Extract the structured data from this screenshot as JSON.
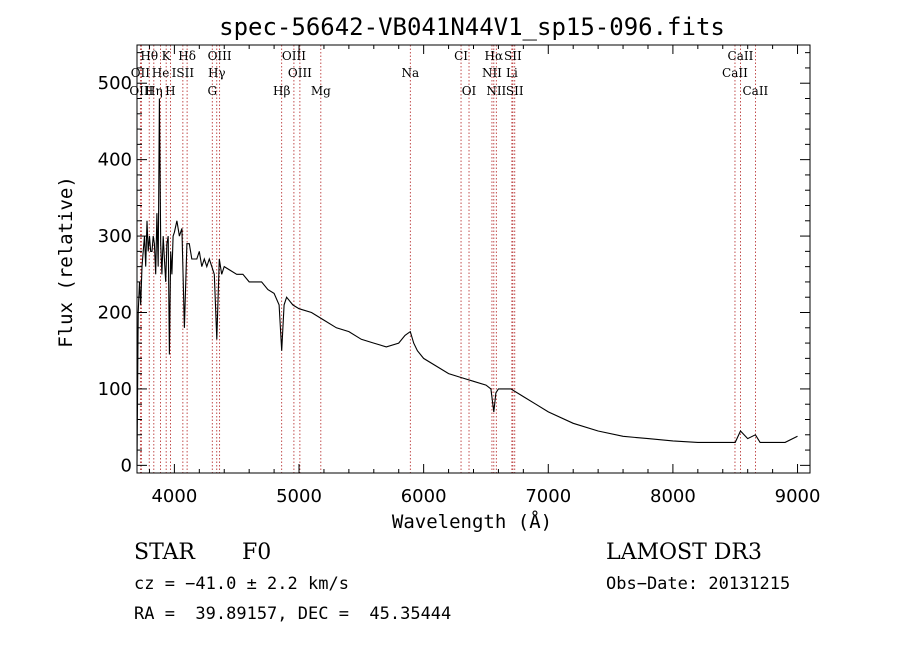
{
  "chart_data": {
    "type": "line",
    "title": "spec-56642-VB041N44V1_sp15-096.fits",
    "xlabel": "Wavelength (Å)",
    "ylabel": "Flux (relative)",
    "xlim": [
      3700,
      9100
    ],
    "ylim": [
      -10,
      550
    ],
    "x_ticks": [
      4000,
      5000,
      6000,
      7000,
      8000,
      9000
    ],
    "y_ticks": [
      0,
      100,
      200,
      300,
      400,
      500
    ],
    "series": [
      {
        "name": "flux",
        "x": [
          3700,
          3710,
          3720,
          3730,
          3740,
          3750,
          3760,
          3770,
          3780,
          3790,
          3800,
          3810,
          3820,
          3830,
          3840,
          3850,
          3860,
          3870,
          3880,
          3890,
          3900,
          3910,
          3920,
          3930,
          3940,
          3950,
          3960,
          3970,
          3980,
          3990,
          4000,
          4020,
          4040,
          4060,
          4080,
          4100,
          4120,
          4140,
          4160,
          4180,
          4200,
          4220,
          4240,
          4260,
          4280,
          4300,
          4320,
          4340,
          4360,
          4380,
          4400,
          4450,
          4500,
          4550,
          4600,
          4650,
          4700,
          4750,
          4800,
          4840,
          4861,
          4880,
          4900,
          4950,
          5000,
          5100,
          5200,
          5300,
          5400,
          5500,
          5600,
          5700,
          5800,
          5850,
          5893,
          5920,
          5950,
          6000,
          6100,
          6200,
          6300,
          6400,
          6500,
          6540,
          6563,
          6580,
          6600,
          6700,
          6800,
          6900,
          7000,
          7200,
          7400,
          7600,
          7800,
          8000,
          8200,
          8400,
          8500,
          8542,
          8600,
          8662,
          8700,
          8800,
          8900,
          9000
        ],
        "values": [
          0,
          200,
          240,
          210,
          260,
          280,
          300,
          260,
          320,
          280,
          300,
          280,
          280,
          300,
          290,
          250,
          330,
          260,
          480,
          290,
          250,
          300,
          270,
          240,
          290,
          300,
          145,
          280,
          250,
          300,
          305,
          320,
          300,
          310,
          180,
          290,
          290,
          270,
          270,
          270,
          280,
          260,
          270,
          260,
          270,
          260,
          250,
          165,
          270,
          250,
          260,
          255,
          250,
          250,
          240,
          240,
          240,
          230,
          225,
          210,
          150,
          210,
          220,
          210,
          205,
          200,
          190,
          180,
          175,
          165,
          160,
          155,
          160,
          170,
          175,
          160,
          150,
          140,
          130,
          120,
          115,
          110,
          105,
          100,
          70,
          95,
          100,
          100,
          90,
          80,
          70,
          55,
          45,
          38,
          35,
          32,
          30,
          30,
          30,
          45,
          35,
          40,
          30,
          30,
          30,
          38
        ]
      }
    ],
    "annotation_rows": {
      "top": [
        "Hθ",
        "K",
        "Hδ",
        "OIII",
        "OIII",
        "CI",
        "Hα",
        "SII",
        "CaII"
      ],
      "middle": [
        "OII",
        "He",
        "ISII",
        "Hγ",
        "OIII",
        "Na",
        "NII",
        "Li",
        "CaII"
      ],
      "bottom": [
        "OIII",
        "Hη",
        "H",
        "G",
        "Hβ",
        "Mg",
        "OI",
        "NII",
        "SII",
        "CaII"
      ]
    },
    "lines": [
      {
        "label": "Hθ",
        "wavelength": 3798,
        "row": 0
      },
      {
        "label": "K",
        "wavelength": 3934,
        "row": 0
      },
      {
        "label": "Hδ",
        "wavelength": 4102,
        "row": 0
      },
      {
        "label": "OIII",
        "wavelength": 4363,
        "row": 0
      },
      {
        "label": "OIII",
        "wavelength": 4959,
        "row": 0
      },
      {
        "label": "CI",
        "wavelength": 6300,
        "row": 0
      },
      {
        "label": "Hα",
        "wavelength": 6563,
        "row": 0
      },
      {
        "label": "SII",
        "wavelength": 6716,
        "row": 0
      },
      {
        "label": "CaII",
        "wavelength": 8542,
        "row": 0
      },
      {
        "label": "OII",
        "wavelength": 3727,
        "row": 1
      },
      {
        "label": "He",
        "wavelength": 3889,
        "row": 1
      },
      {
        "label": "ISII",
        "wavelength": 4068,
        "row": 1
      },
      {
        "label": "Hγ",
        "wavelength": 4340,
        "row": 1
      },
      {
        "label": "OIII",
        "wavelength": 5007,
        "row": 1
      },
      {
        "label": "Na",
        "wavelength": 5893,
        "row": 1
      },
      {
        "label": "NII",
        "wavelength": 6548,
        "row": 1
      },
      {
        "label": "Li",
        "wavelength": 6708,
        "row": 1
      },
      {
        "label": "CaII",
        "wavelength": 8498,
        "row": 1
      },
      {
        "label": "OIII",
        "wavelength": 3735,
        "row": 2
      },
      {
        "label": "Hη",
        "wavelength": 3835,
        "row": 2
      },
      {
        "label": "H",
        "wavelength": 3968,
        "row": 2
      },
      {
        "label": "G",
        "wavelength": 4304,
        "row": 2
      },
      {
        "label": "Hβ",
        "wavelength": 4861,
        "row": 2
      },
      {
        "label": "Mg",
        "wavelength": 5175,
        "row": 2
      },
      {
        "label": "OI",
        "wavelength": 6364,
        "row": 2
      },
      {
        "label": "NII",
        "wavelength": 6583,
        "row": 2
      },
      {
        "label": "SII",
        "wavelength": 6731,
        "row": 2
      },
      {
        "label": "CaII",
        "wavelength": 8662,
        "row": 2
      }
    ]
  },
  "info": {
    "class_label": "STAR",
    "subclass": "F0",
    "survey": "LAMOST DR3",
    "cz": "cz = −41.0 ± 2.2 km/s",
    "obs_date": "Obs−Date: 20131215",
    "coords": "RA =  39.89157, DEC =  45.35444"
  },
  "colors": {
    "spectrum": "#000000",
    "line_marker": "#b22222",
    "axes": "#000000"
  }
}
